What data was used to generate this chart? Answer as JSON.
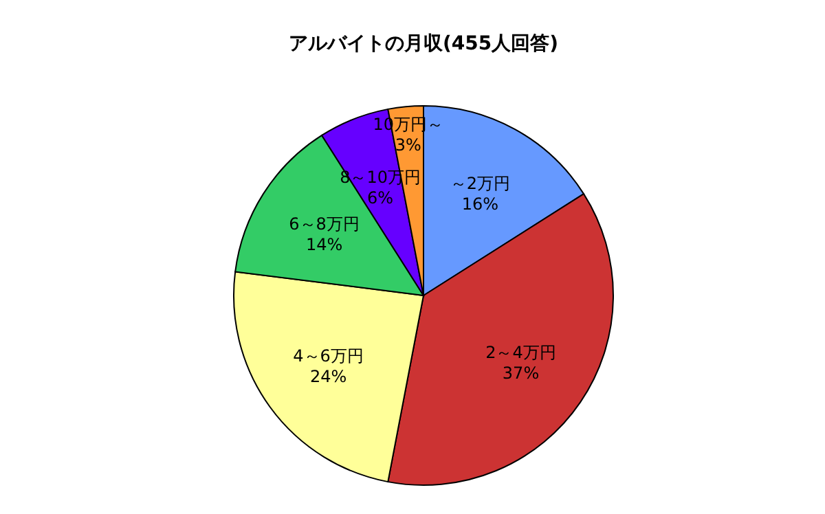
{
  "chart_data": {
    "type": "pie",
    "title": "アルバイトの月収(455人回答)",
    "categories": [
      "～2万円",
      "2～4万円",
      "4～6万円",
      "6～8万円",
      "8～10万円",
      "10万円～"
    ],
    "values": [
      16,
      37,
      24,
      14,
      6,
      3
    ],
    "value_labels": [
      "16%",
      "37%",
      "24%",
      "14%",
      "6%",
      "3%"
    ],
    "colors": [
      "#6699ff",
      "#cc3333",
      "#ffff99",
      "#33cc66",
      "#6600ff",
      "#ff9933"
    ]
  }
}
